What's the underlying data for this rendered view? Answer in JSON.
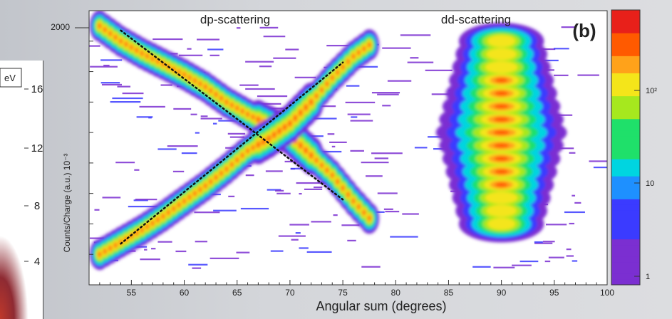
{
  "chart_data": {
    "type": "heatmap",
    "xlabel": "Angular sum (degrees)",
    "ylabel": "Counts/Charge (a.u.) 10⁻³",
    "panel_label": "(b)",
    "annotations": [
      "dp-scattering",
      "dd-scattering"
    ],
    "xlim": [
      51,
      100
    ],
    "ylim": [
      2,
      20
    ],
    "x_ticks": [
      55,
      60,
      65,
      70,
      75,
      80,
      85,
      90,
      95,
      100
    ],
    "y_ticks": [
      4,
      8,
      12,
      16
    ],
    "y_tick_top": 2000,
    "colorbar": {
      "scale": "log",
      "ticks": [
        "1",
        "10",
        "10²"
      ],
      "colors": [
        "#7b2fd1",
        "#3b3bff",
        "#1e90ff",
        "#00d5e0",
        "#1fe06a",
        "#a6e81e",
        "#f4e51a",
        "#ffa21a",
        "#ff5a00",
        "#e8201a"
      ]
    },
    "dp_band_descending": {
      "name": "",
      "x": [
        52,
        54,
        56,
        58,
        60,
        62,
        64,
        66,
        68,
        70,
        72,
        74,
        76,
        78
      ],
      "y": [
        19.0,
        18.0,
        17.2,
        16.5,
        15.8,
        15.0,
        14.0,
        13.2,
        12.5,
        11.8,
        10.5,
        9.2,
        7.5,
        6.0
      ]
    },
    "dp_band_ascending": {
      "name": "",
      "x": [
        52,
        54,
        56,
        58,
        60,
        62,
        64,
        66,
        68,
        70,
        72,
        74,
        76,
        78
      ],
      "y": [
        4.0,
        4.8,
        5.6,
        6.5,
        7.5,
        8.5,
        9.6,
        10.8,
        11.6,
        12.6,
        14.0,
        15.6,
        17.0,
        18.0
      ]
    },
    "dd_cluster": {
      "x_center": 90,
      "x_width": 4,
      "y_range": [
        6,
        18
      ]
    },
    "fit_line_descending": {
      "x": [
        54,
        75
      ],
      "y": [
        18.7,
        7.6
      ]
    },
    "fit_line_ascending": {
      "x": [
        54,
        75
      ],
      "y": [
        4.7,
        16.6
      ]
    },
    "left_panel_partial": {
      "tick_labels": [
        "16",
        "12",
        "8",
        "4"
      ],
      "unit_fragment": "eV"
    }
  }
}
